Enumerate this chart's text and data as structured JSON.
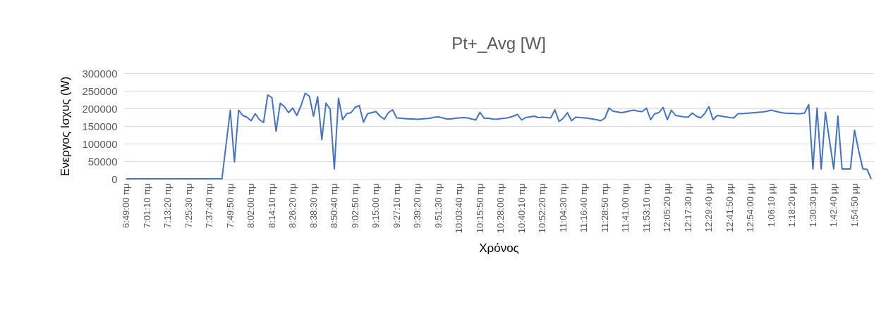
{
  "chart_data": {
    "type": "line",
    "title": "Pt+_Avg [W]",
    "xlabel": "Χρόνος",
    "ylabel": "Ενεργος Ισχυς (W)",
    "categories": [
      "6:49:00 πμ",
      null,
      null,
      null,
      null,
      "7:01:10 πμ",
      null,
      null,
      null,
      null,
      "7:13:20 πμ",
      null,
      null,
      null,
      null,
      "7:25:30 πμ",
      null,
      null,
      null,
      null,
      "7:37:40 πμ",
      null,
      null,
      null,
      null,
      "7:49:50 πμ",
      null,
      null,
      null,
      null,
      "8:02:00 πμ",
      null,
      null,
      null,
      null,
      "8:14:10 πμ",
      null,
      null,
      null,
      null,
      "8:26:20 πμ",
      null,
      null,
      null,
      null,
      "8:38:30 πμ",
      null,
      null,
      null,
      null,
      "8:50:40 πμ",
      null,
      null,
      null,
      null,
      "9:02:50 πμ",
      null,
      null,
      null,
      null,
      "9:15:00 πμ",
      null,
      null,
      null,
      null,
      "9:27:10 πμ",
      null,
      null,
      null,
      null,
      "9:39:20 πμ",
      null,
      null,
      null,
      null,
      "9:51:30 πμ",
      null,
      null,
      null,
      null,
      "10:03:40 πμ",
      null,
      null,
      null,
      null,
      "10:15:50 πμ",
      null,
      null,
      null,
      null,
      "10:28:00 πμ",
      null,
      null,
      null,
      null,
      "10:40:10 πμ",
      null,
      null,
      null,
      null,
      "10:52:20 πμ",
      null,
      null,
      null,
      null,
      "11:04:30 πμ",
      null,
      null,
      null,
      null,
      "11:16:40 πμ",
      null,
      null,
      null,
      null,
      "11:28:50 πμ",
      null,
      null,
      null,
      null,
      "11:41:00 πμ",
      null,
      null,
      null,
      null,
      "11:53:10 πμ",
      null,
      null,
      null,
      null,
      "12:05:20 μμ",
      null,
      null,
      null,
      null,
      "12:17:30 μμ",
      null,
      null,
      null,
      null,
      "12:29:40 μμ",
      null,
      null,
      null,
      null,
      "12:41:50 μμ",
      null,
      null,
      null,
      null,
      "12:54:00 μμ",
      null,
      null,
      null,
      null,
      "1:06:10 μμ",
      null,
      null,
      null,
      null,
      "1:18:20 μμ",
      null,
      null,
      null,
      null,
      "1:30:30 μμ",
      null,
      null,
      null,
      null,
      "1:42:40 μμ",
      null,
      null,
      null,
      null,
      "1:54:50 μμ",
      null,
      null,
      null,
      null
    ],
    "series": [
      {
        "color": "#4472c4",
        "values": [
          0,
          0,
          0,
          0,
          0,
          0,
          0,
          0,
          0,
          0,
          0,
          0,
          0,
          0,
          0,
          0,
          0,
          0,
          0,
          0,
          0,
          0,
          0,
          0,
          98000,
          195000,
          48000,
          195000,
          180000,
          175000,
          165000,
          185000,
          168000,
          160000,
          238000,
          231000,
          135000,
          215000,
          205000,
          188000,
          201000,
          180000,
          208000,
          243000,
          235000,
          178000,
          233000,
          111000,
          215000,
          198000,
          28000,
          229000,
          168000,
          185000,
          188000,
          203000,
          208000,
          161000,
          185000,
          188000,
          191000,
          178000,
          169000,
          188000,
          196000,
          173000,
          172000,
          171000,
          170000,
          170000,
          169000,
          170000,
          171000,
          172000,
          175000,
          176000,
          173000,
          170000,
          170000,
          172000,
          173000,
          174000,
          173000,
          170000,
          167000,
          189000,
          172000,
          172000,
          170000,
          169000,
          171000,
          172000,
          174000,
          178000,
          183000,
          167000,
          174000,
          176000,
          178000,
          174000,
          175000,
          174000,
          173000,
          196000,
          163000,
          172000,
          188000,
          165000,
          175000,
          174000,
          173000,
          172000,
          170000,
          168000,
          165000,
          172000,
          201000,
          192000,
          190000,
          188000,
          190000,
          193000,
          195000,
          192000,
          191000,
          201000,
          168000,
          185000,
          188000,
          203000,
          168000,
          195000,
          180000,
          178000,
          176000,
          175000,
          187000,
          178000,
          173000,
          185000,
          205000,
          168000,
          180000,
          178000,
          176000,
          174000,
          173000,
          185000,
          185000,
          186000,
          187000,
          188000,
          189000,
          190000,
          192000,
          195000,
          192000,
          189000,
          187000,
          186000,
          186000,
          185000,
          185000,
          187000,
          211000,
          28000,
          201000,
          28000,
          189000,
          108000,
          28000,
          178000,
          28000,
          28000,
          28000,
          138000,
          80000,
          28000,
          27000,
          0
        ]
      }
    ],
    "ylim": [
      0,
      300000
    ],
    "yticks": [
      0,
      50000,
      100000,
      150000,
      200000,
      250000,
      300000
    ],
    "grid": "y",
    "marker": "none",
    "line_style": "solid"
  }
}
